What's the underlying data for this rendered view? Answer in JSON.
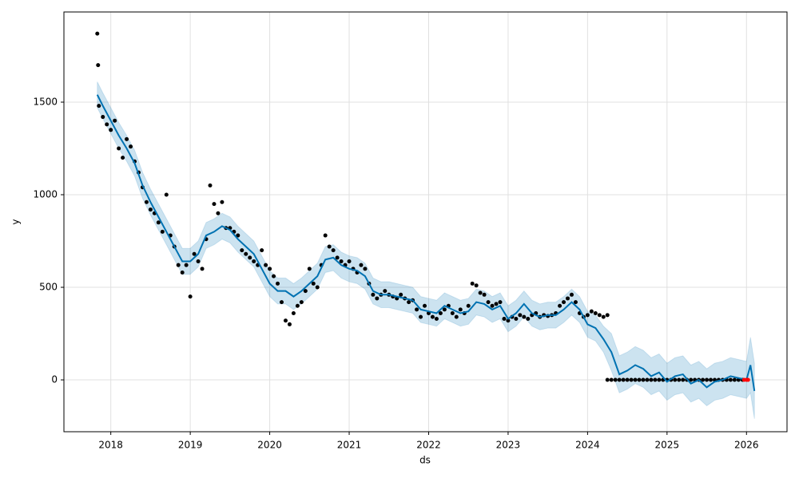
{
  "chart_data": {
    "type": "scatter",
    "xlabel": "ds",
    "ylabel": "y",
    "xlim": [
      2017.41,
      2026.51
    ],
    "ylim": [
      -280,
      1987
    ],
    "xticks": [
      2018,
      2019,
      2020,
      2021,
      2022,
      2023,
      2024,
      2025,
      2026
    ],
    "yticks": [
      0,
      500,
      1000,
      1500
    ],
    "grid": true,
    "series": [
      {
        "kind": "band",
        "color": "#0072B2",
        "x": [
          2017.83,
          2017.9,
          2018.0,
          2018.1,
          2018.2,
          2018.3,
          2018.4,
          2018.5,
          2018.6,
          2018.7,
          2018.8,
          2018.9,
          2019.0,
          2019.1,
          2019.2,
          2019.3,
          2019.4,
          2019.5,
          2019.6,
          2019.7,
          2019.8,
          2019.9,
          2020.0,
          2020.1,
          2020.2,
          2020.3,
          2020.4,
          2020.5,
          2020.6,
          2020.7,
          2020.8,
          2020.9,
          2021.0,
          2021.1,
          2021.2,
          2021.3,
          2021.4,
          2021.5,
          2021.6,
          2021.7,
          2021.8,
          2021.9,
          2022.0,
          2022.1,
          2022.2,
          2022.3,
          2022.4,
          2022.5,
          2022.6,
          2022.7,
          2022.8,
          2022.9,
          2023.0,
          2023.1,
          2023.2,
          2023.3,
          2023.4,
          2023.5,
          2023.6,
          2023.7,
          2023.8,
          2023.9,
          2024.0,
          2024.1,
          2024.2,
          2024.3,
          2024.4,
          2024.5,
          2024.6,
          2024.7,
          2024.8,
          2024.9,
          2025.0,
          2025.1,
          2025.2,
          2025.3,
          2025.4,
          2025.5,
          2025.6,
          2025.7,
          2025.8,
          2025.9,
          2026.0,
          2026.05,
          2026.1
        ],
        "values": [
          1610,
          1550,
          1470,
          1390,
          1320,
          1240,
          1120,
          1030,
          950,
          870,
          790,
          710,
          710,
          750,
          850,
          870,
          900,
          880,
          830,
          790,
          750,
          670,
          590,
          550,
          550,
          520,
          550,
          590,
          630,
          720,
          730,
          690,
          670,
          660,
          630,
          550,
          530,
          530,
          520,
          510,
          500,
          450,
          440,
          430,
          470,
          450,
          430,
          440,
          490,
          480,
          450,
          470,
          400,
          430,
          480,
          430,
          410,
          420,
          420,
          450,
          490,
          450,
          370,
          350,
          290,
          250,
          130,
          150,
          180,
          160,
          120,
          140,
          90,
          120,
          130,
          80,
          100,
          60,
          90,
          100,
          120,
          110,
          100,
          230,
          90
        ],
        "lower": [
          1470,
          1410,
          1330,
          1250,
          1180,
          1100,
          980,
          890,
          810,
          730,
          650,
          570,
          570,
          610,
          710,
          730,
          760,
          740,
          690,
          650,
          610,
          530,
          450,
          410,
          410,
          380,
          410,
          450,
          490,
          580,
          590,
          550,
          530,
          520,
          490,
          410,
          390,
          390,
          380,
          370,
          360,
          310,
          300,
          290,
          330,
          310,
          290,
          300,
          350,
          340,
          310,
          330,
          260,
          290,
          340,
          290,
          270,
          280,
          280,
          310,
          350,
          310,
          230,
          210,
          150,
          50,
          -70,
          -50,
          -20,
          -40,
          -80,
          -60,
          -110,
          -80,
          -70,
          -120,
          -100,
          -140,
          -110,
          -100,
          -80,
          -90,
          -100,
          -70,
          -210
        ]
      },
      {
        "kind": "scatter",
        "color": "#000000",
        "x": [
          2017.83,
          2017.84,
          2017.85,
          2017.9,
          2017.95,
          2018.0,
          2018.05,
          2018.1,
          2018.15,
          2018.2,
          2018.25,
          2018.3,
          2018.35,
          2018.4,
          2018.45,
          2018.5,
          2018.55,
          2018.6,
          2018.65,
          2018.7,
          2018.75,
          2018.8,
          2018.85,
          2018.9,
          2018.95,
          2019.0,
          2019.05,
          2019.1,
          2019.15,
          2019.2,
          2019.25,
          2019.3,
          2019.35,
          2019.4,
          2019.45,
          2019.5,
          2019.55,
          2019.6,
          2019.65,
          2019.7,
          2019.75,
          2019.8,
          2019.85,
          2019.9,
          2019.95,
          2020.0,
          2020.05,
          2020.1,
          2020.15,
          2020.2,
          2020.25,
          2020.3,
          2020.35,
          2020.4,
          2020.45,
          2020.5,
          2020.55,
          2020.6,
          2020.65,
          2020.7,
          2020.75,
          2020.8,
          2020.85,
          2020.9,
          2020.95,
          2021.0,
          2021.05,
          2021.1,
          2021.15,
          2021.2,
          2021.25,
          2021.3,
          2021.35,
          2021.4,
          2021.45,
          2021.5,
          2021.55,
          2021.6,
          2021.65,
          2021.7,
          2021.75,
          2021.8,
          2021.85,
          2021.9,
          2021.95,
          2022.0,
          2022.05,
          2022.1,
          2022.15,
          2022.2,
          2022.25,
          2022.3,
          2022.35,
          2022.4,
          2022.45,
          2022.5,
          2022.55,
          2022.6,
          2022.65,
          2022.7,
          2022.75,
          2022.8,
          2022.85,
          2022.9,
          2022.95,
          2023.0,
          2023.05,
          2023.1,
          2023.15,
          2023.2,
          2023.25,
          2023.3,
          2023.35,
          2023.4,
          2023.45,
          2023.5,
          2023.55,
          2023.6,
          2023.65,
          2023.7,
          2023.75,
          2023.8,
          2023.85,
          2023.9,
          2023.95,
          2024.0,
          2024.05,
          2024.1,
          2024.15,
          2024.2,
          2024.25
        ],
        "values": [
          1870,
          1700,
          1480,
          1420,
          1380,
          1350,
          1400,
          1250,
          1200,
          1300,
          1260,
          1180,
          1120,
          1040,
          960,
          920,
          900,
          850,
          800,
          1000,
          780,
          720,
          620,
          580,
          620,
          450,
          680,
          640,
          600,
          760,
          1050,
          950,
          900,
          960,
          820,
          820,
          800,
          780,
          700,
          680,
          660,
          640,
          620,
          700,
          620,
          600,
          560,
          520,
          420,
          320,
          300,
          360,
          400,
          420,
          480,
          600,
          520,
          500,
          620,
          780,
          720,
          700,
          660,
          640,
          620,
          640,
          600,
          580,
          620,
          600,
          520,
          460,
          440,
          460,
          480,
          460,
          450,
          440,
          460,
          440,
          420,
          430,
          380,
          340,
          400,
          360,
          340,
          330,
          360,
          380,
          400,
          360,
          340,
          380,
          360,
          400,
          520,
          510,
          470,
          460,
          420,
          400,
          410,
          420,
          330,
          320,
          340,
          330,
          350,
          340,
          330,
          350,
          360,
          340,
          350,
          345,
          350,
          360,
          400,
          420,
          440,
          460,
          420,
          360,
          340,
          350,
          370,
          360,
          350,
          340,
          350
        ]
      },
      {
        "kind": "scatter",
        "color": "#000000",
        "x": [
          2024.25,
          2024.3,
          2024.35,
          2024.4,
          2024.45,
          2024.5,
          2024.55,
          2024.6,
          2024.65,
          2024.7,
          2024.75,
          2024.8,
          2024.85,
          2024.9,
          2024.95,
          2025.0,
          2025.05,
          2025.1,
          2025.15,
          2025.2,
          2025.25,
          2025.3,
          2025.35,
          2025.4,
          2025.45,
          2025.5,
          2025.55,
          2025.6,
          2025.65,
          2025.7,
          2025.75,
          2025.8,
          2025.85,
          2025.9,
          2025.95
        ],
        "values": [
          0,
          0,
          0,
          0,
          0,
          0,
          0,
          0,
          0,
          0,
          0,
          0,
          0,
          0,
          0,
          0,
          0,
          0,
          0,
          0,
          0,
          0,
          0,
          0,
          0,
          0,
          0,
          0,
          0,
          0,
          0,
          0,
          0,
          0,
          0
        ]
      },
      {
        "kind": "line",
        "color": "#0072B2",
        "x": [
          2017.83,
          2017.9,
          2018.0,
          2018.1,
          2018.2,
          2018.3,
          2018.4,
          2018.5,
          2018.6,
          2018.7,
          2018.8,
          2018.9,
          2019.0,
          2019.1,
          2019.2,
          2019.3,
          2019.4,
          2019.5,
          2019.6,
          2019.7,
          2019.8,
          2019.9,
          2020.0,
          2020.1,
          2020.2,
          2020.3,
          2020.4,
          2020.5,
          2020.6,
          2020.7,
          2020.8,
          2020.9,
          2021.0,
          2021.1,
          2021.2,
          2021.3,
          2021.4,
          2021.5,
          2021.6,
          2021.7,
          2021.8,
          2021.9,
          2022.0,
          2022.1,
          2022.2,
          2022.3,
          2022.4,
          2022.5,
          2022.6,
          2022.7,
          2022.8,
          2022.9,
          2023.0,
          2023.1,
          2023.2,
          2023.3,
          2023.4,
          2023.5,
          2023.6,
          2023.7,
          2023.8,
          2023.9,
          2024.0,
          2024.1,
          2024.2,
          2024.3,
          2024.4,
          2024.5,
          2024.6,
          2024.7,
          2024.8,
          2024.9,
          2025.0,
          2025.1,
          2025.2,
          2025.3,
          2025.4,
          2025.5,
          2025.6,
          2025.7,
          2025.8,
          2025.9,
          2026.0,
          2026.05,
          2026.1
        ],
        "values": [
          1540,
          1480,
          1400,
          1320,
          1250,
          1170,
          1050,
          960,
          880,
          800,
          720,
          640,
          640,
          680,
          780,
          800,
          830,
          810,
          760,
          720,
          680,
          600,
          520,
          480,
          480,
          450,
          480,
          520,
          560,
          650,
          660,
          620,
          600,
          590,
          560,
          480,
          460,
          460,
          450,
          440,
          430,
          380,
          370,
          360,
          400,
          380,
          360,
          370,
          420,
          410,
          380,
          400,
          330,
          360,
          410,
          360,
          340,
          350,
          350,
          380,
          420,
          380,
          300,
          280,
          220,
          150,
          30,
          50,
          80,
          60,
          20,
          40,
          -10,
          20,
          30,
          -20,
          0,
          -40,
          -10,
          0,
          20,
          10,
          0,
          80,
          -60
        ]
      },
      {
        "kind": "scatter",
        "color": "#ff0000",
        "x": [
          2025.97,
          2026.0,
          2026.02
        ],
        "values": [
          0,
          0,
          0
        ]
      }
    ]
  }
}
